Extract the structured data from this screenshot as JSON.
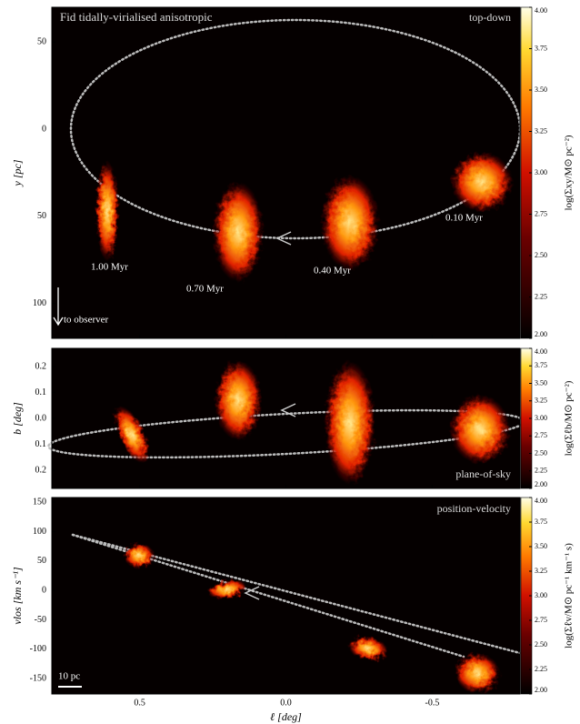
{
  "chart_data": [
    {
      "type": "image",
      "ylabel": "y [pc]",
      "xlim": [
        0.8,
        -0.8
      ],
      "xticks": [
        0.5,
        {
          "value": 0,
          "label": "0.0"
        },
        -0.5
      ],
      "ylim": [
        -120,
        70
      ],
      "yticks": [
        50,
        0,
        {
          "value": -50,
          "label": "50"
        },
        {
          "value": -100,
          "label": "100"
        }
      ],
      "annotations": [
        "Fid tidally-virialised anisotropic",
        "top-down",
        "0.10 Myr",
        "0.40 Myr",
        "0.70 Myr",
        "1.00 Myr",
        "to observer"
      ],
      "colorbar": {
        "label": "log(Σxy/M⊙ pc⁻²)",
        "lim": [
          2,
          4
        ],
        "ticks": [
          {
            "value": 2,
            "label": "2.00"
          },
          {
            "value": 2.25,
            "label": "2.25"
          },
          {
            "value": 2.5,
            "label": "2.50"
          },
          {
            "value": 2.75,
            "label": "2.75"
          },
          {
            "value": 3,
            "label": "3.00"
          },
          {
            "value": 3.25,
            "label": "3.25"
          },
          {
            "value": 3.5,
            "label": "3.50"
          },
          {
            "value": 3.75,
            "label": "3.75"
          },
          {
            "value": 4,
            "label": "4.00"
          }
        ]
      }
    },
    {
      "type": "image",
      "ylabel": "b [deg]",
      "xlim": [
        0.8,
        -0.8
      ],
      "xticks": [
        0.5,
        {
          "value": 0,
          "label": "0.0"
        },
        -0.5
      ],
      "ylim": [
        -0.27,
        0.27
      ],
      "yticks": [
        0.2,
        0.1,
        {
          "value": 0,
          "label": "0.0"
        },
        {
          "value": -0.1,
          "label": "0.1"
        },
        {
          "value": -0.2,
          "label": "0.2"
        }
      ],
      "annotations": [
        "plane-of-sky"
      ],
      "colorbar": {
        "label": "log(Σℓb/M⊙ pc⁻²)",
        "lim": [
          2,
          4
        ],
        "ticks": [
          {
            "value": 2,
            "label": "2.00"
          },
          {
            "value": 2.25,
            "label": "2.25"
          },
          {
            "value": 2.5,
            "label": "2.50"
          },
          {
            "value": 2.75,
            "label": "2.75"
          },
          {
            "value": 3,
            "label": "3.00"
          },
          {
            "value": 3.25,
            "label": "3.25"
          },
          {
            "value": 3.5,
            "label": "3.50"
          },
          {
            "value": 3.75,
            "label": "3.75"
          },
          {
            "value": 4,
            "label": "4.00"
          }
        ]
      }
    },
    {
      "type": "image",
      "ylabel": "vlos [km s⁻¹]",
      "xlabel": "ℓ [deg]",
      "xlim": [
        0.8,
        -0.8
      ],
      "xticks": [
        0.5,
        {
          "value": 0,
          "label": "0.0"
        },
        -0.5
      ],
      "ylim": [
        -176,
        158
      ],
      "yticks": [
        150,
        100,
        50,
        0,
        -50,
        -100,
        -150
      ],
      "annotations": [
        "position-velocity",
        "10 pc"
      ],
      "colorbar": {
        "label": "log(Σℓv/M⊙ pc⁻¹ km⁻¹ s)",
        "lim": [
          2,
          4
        ],
        "ticks": [
          {
            "value": 2,
            "label": "2.00"
          },
          {
            "value": 2.25,
            "label": "2.25"
          },
          {
            "value": 2.5,
            "label": "2.50"
          },
          {
            "value": 2.75,
            "label": "2.75"
          },
          {
            "value": 3,
            "label": "3.00"
          },
          {
            "value": 3.25,
            "label": "3.25"
          },
          {
            "value": 3.5,
            "label": "3.50"
          },
          {
            "value": 3.75,
            "label": "3.75"
          },
          {
            "value": 4,
            "label": "4.00"
          }
        ]
      }
    }
  ]
}
